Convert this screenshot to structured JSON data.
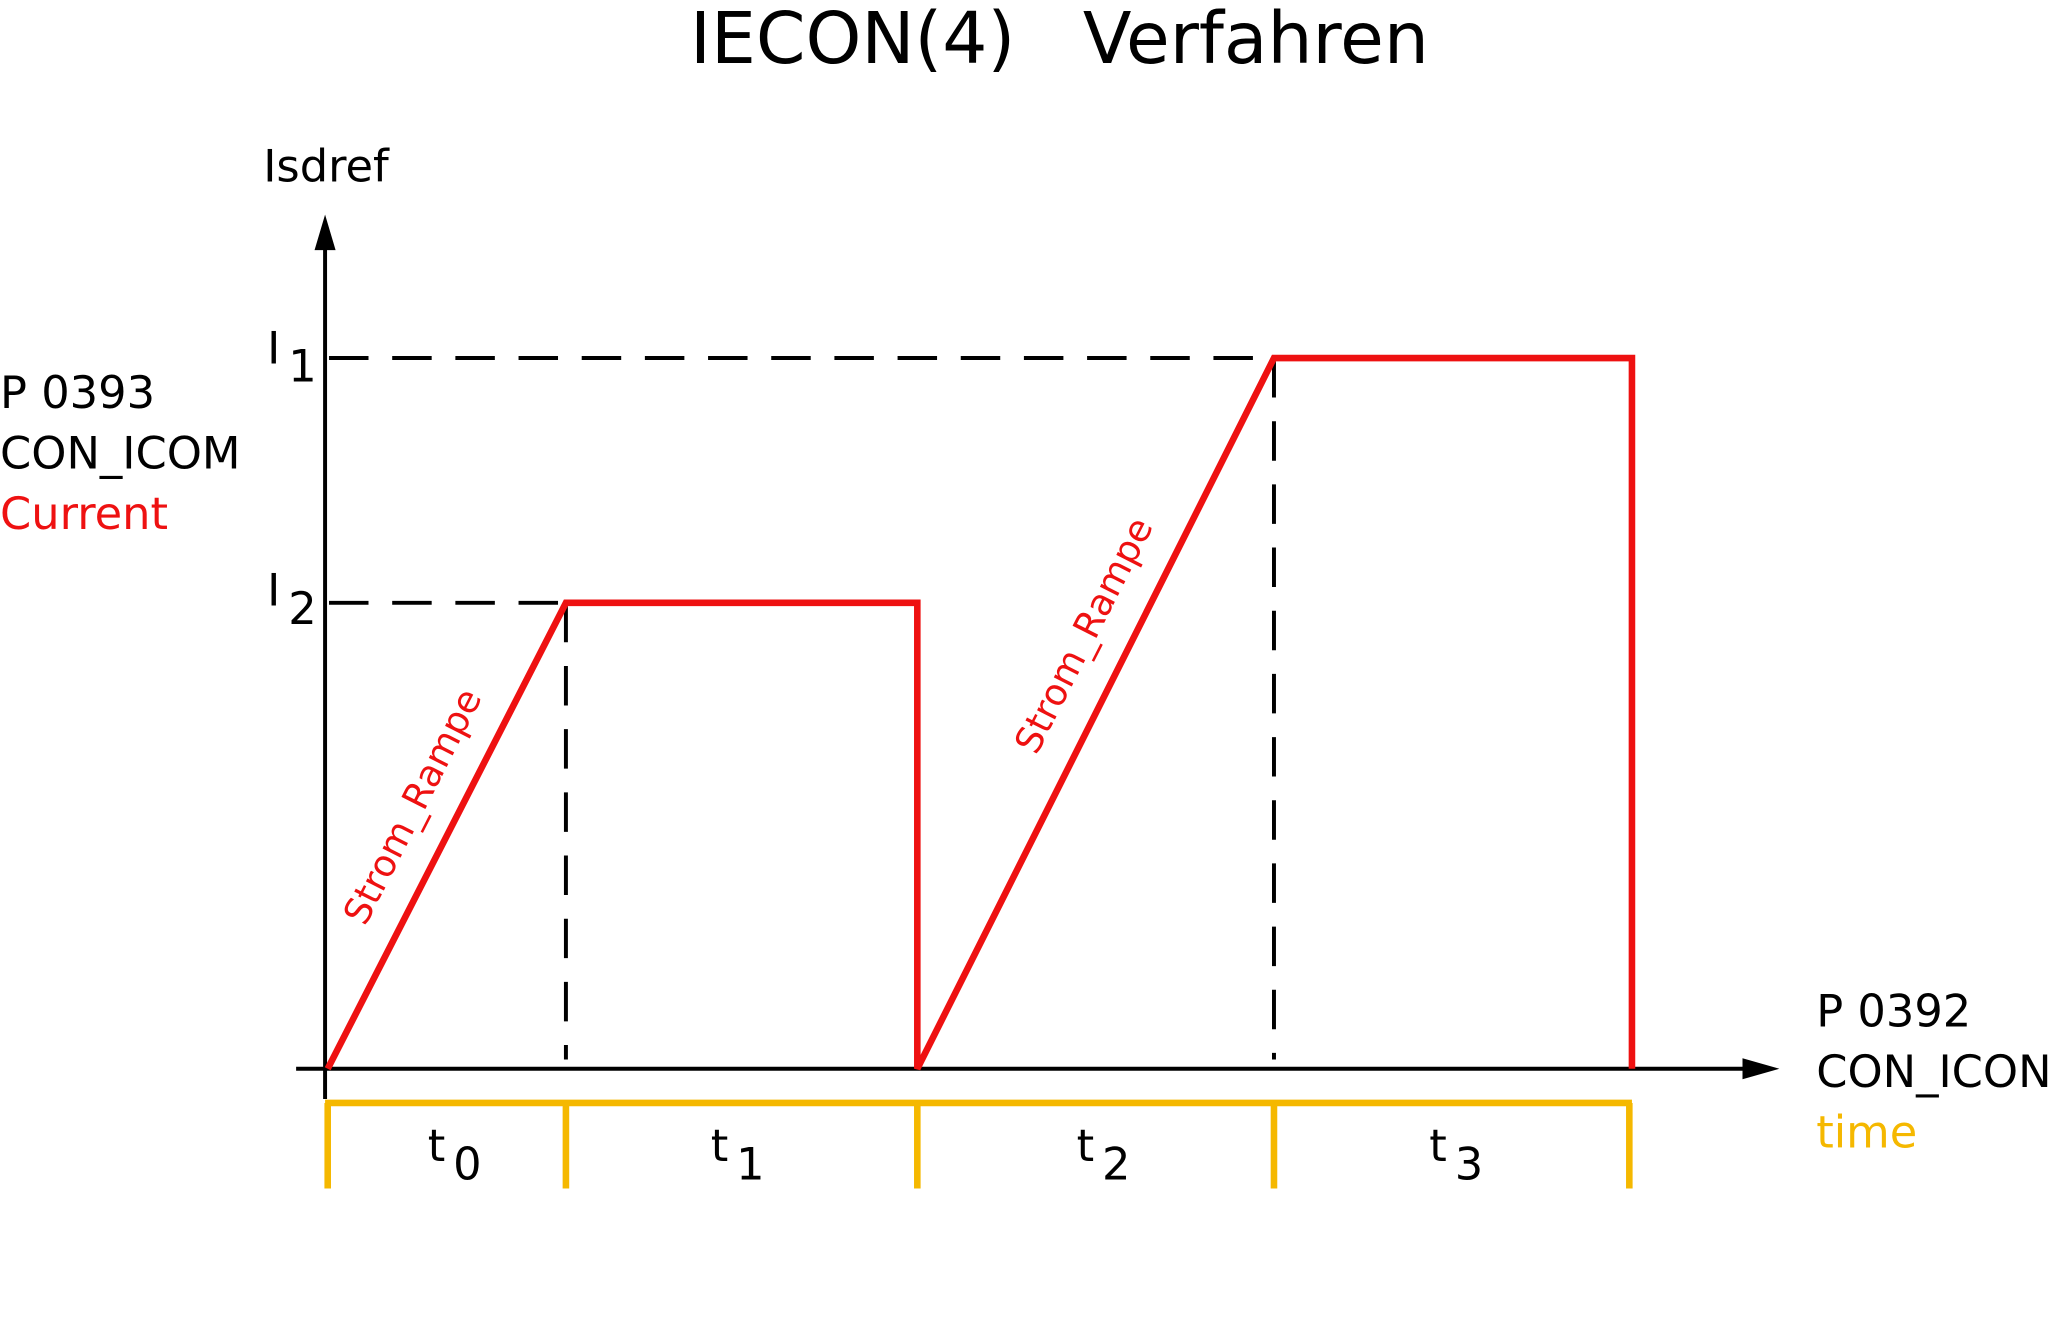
{
  "title": "IECON(4)   Verfahren",
  "y_axis": {
    "label": "Isdref",
    "parameter": "P 0393",
    "name": "CON_ICOM",
    "quantity": "Current"
  },
  "x_axis": {
    "parameter": "P 0392",
    "name": "CON_ICON",
    "quantity": "time"
  },
  "levels": [
    {
      "symbol": "I",
      "index": "1"
    },
    {
      "symbol": "I",
      "index": "2"
    }
  ],
  "ramps": [
    "Strom_Rampe",
    "Strom_Rampe"
  ],
  "intervals": [
    {
      "symbol": "t",
      "index": "0"
    },
    {
      "symbol": "t",
      "index": "1"
    },
    {
      "symbol": "t",
      "index": "2"
    },
    {
      "symbol": "t",
      "index": "3"
    }
  ]
}
